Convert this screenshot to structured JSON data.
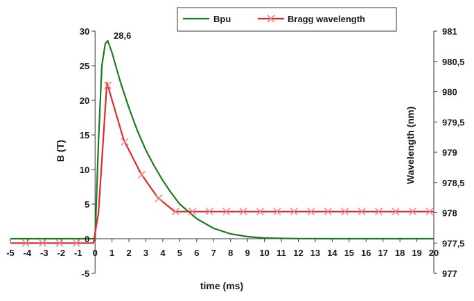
{
  "chart_data": {
    "type": "line",
    "xlabel": "time (ms)",
    "ylabel_left": "B (T)",
    "ylabel_right": "Wavelength (nm)",
    "xlim": [
      -5,
      20
    ],
    "xticks": [
      -5,
      -4,
      -3,
      -2,
      -1,
      0,
      1,
      2,
      3,
      4,
      5,
      6,
      7,
      8,
      9,
      10,
      11,
      12,
      13,
      14,
      15,
      16,
      17,
      18,
      19,
      20
    ],
    "ylim_left": [
      -5,
      30
    ],
    "yticks_left": [
      -5,
      0,
      5,
      10,
      15,
      20,
      25,
      30
    ],
    "ylim_right": [
      977,
      981
    ],
    "yticks_right_labels": [
      "977",
      "977,5",
      "978",
      "978,5",
      "979",
      "979,5",
      "980",
      "980,5",
      "981"
    ],
    "yticks_right_values": [
      977,
      977.5,
      978,
      978.5,
      979,
      979.5,
      980,
      980.5,
      981
    ],
    "legend_position": "top-center",
    "annotation": {
      "text": "28,6",
      "x": 0.75,
      "y": 28.6
    },
    "series": [
      {
        "name": "Bpu",
        "axis": "left",
        "color": "#1e7a1e",
        "marker": "none",
        "x": [
          -5,
          -1,
          0,
          0.2,
          0.4,
          0.6,
          0.75,
          1,
          1.5,
          2,
          2.5,
          3,
          3.5,
          4,
          4.5,
          5,
          6,
          7,
          8,
          9,
          10,
          11,
          12,
          14,
          16,
          18,
          20
        ],
        "y": [
          0,
          0,
          0,
          14,
          25,
          28.2,
          28.6,
          26.9,
          22.6,
          18.9,
          15.6,
          12.8,
          10.5,
          8.4,
          6.6,
          5.0,
          2.9,
          1.5,
          0.7,
          0.3,
          0.1,
          0.05,
          0.02,
          0,
          0,
          0,
          0
        ]
      },
      {
        "name": "Bragg wavelength",
        "axis": "right",
        "color": "#e0282a",
        "marker": "x",
        "marker_color": "#f08080",
        "x": [
          -5,
          -4,
          -3,
          -2,
          -1,
          -0.1,
          0.2,
          0.7,
          1.7,
          2.7,
          3.7,
          4.7,
          5.7,
          6.7,
          7.7,
          8.7,
          9.7,
          10.7,
          11.7,
          12.7,
          13.7,
          14.7,
          15.7,
          16.7,
          17.7,
          18.7,
          19.7,
          20
        ],
        "y": [
          977.5,
          977.5,
          977.5,
          977.5,
          977.5,
          977.5,
          978.0,
          980.15,
          979.2,
          978.65,
          978.25,
          978.02,
          978.02,
          978.02,
          978.02,
          978.02,
          978.02,
          978.02,
          978.02,
          978.02,
          978.02,
          978.02,
          978.02,
          978.02,
          978.02,
          978.02,
          978.02,
          978.02
        ],
        "markers_x": [
          -4.1,
          -3.1,
          -2.1,
          -1.1,
          0.75,
          1.75,
          2.75,
          3.75,
          4.75,
          5.75,
          6.75,
          7.75,
          8.75,
          9.75,
          10.75,
          11.75,
          12.75,
          13.75,
          14.75,
          15.75,
          16.75,
          17.75,
          18.75,
          19.75
        ]
      }
    ]
  }
}
